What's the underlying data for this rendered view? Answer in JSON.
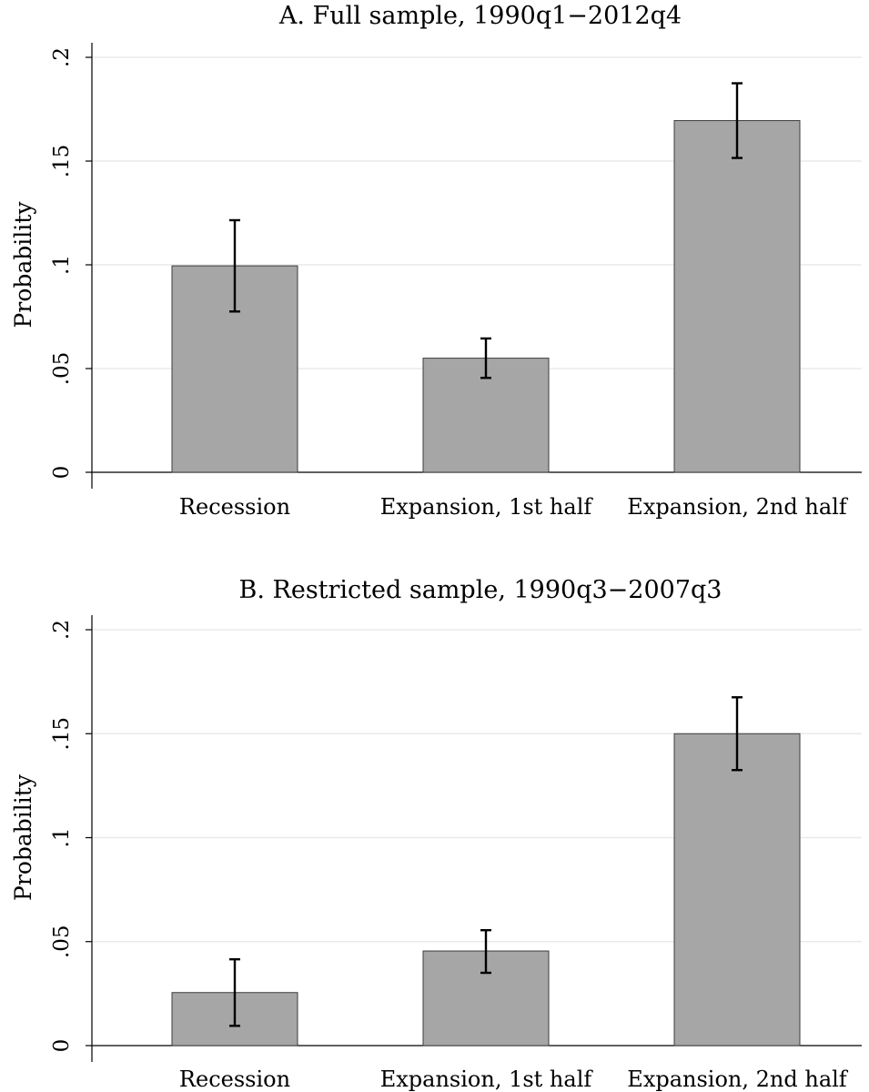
{
  "chart_data": [
    {
      "type": "bar",
      "title": "A. Full sample, 1990q1−2012q4",
      "xlabel": "",
      "ylabel": "Probability",
      "categories": [
        "Recession",
        "Expansion, 1st half",
        "Expansion, 2nd half"
      ],
      "values": [
        0.0995,
        0.055,
        0.1695
      ],
      "error_low": [
        0.0775,
        0.0455,
        0.1515
      ],
      "error_high": [
        0.1215,
        0.0645,
        0.1875
      ],
      "yticks": [
        0,
        0.05,
        0.1,
        0.15,
        0.2
      ],
      "ytick_labels": [
        "0",
        ".05",
        ".1",
        ".15",
        ".2"
      ],
      "ylim": [
        0,
        0.2
      ],
      "grid": true,
      "bar_color": "#a6a6a6"
    },
    {
      "type": "bar",
      "title": "B. Restricted sample, 1990q3−2007q3",
      "xlabel": "",
      "ylabel": "Probability",
      "categories": [
        "Recession",
        "Expansion, 1st half",
        "Expansion, 2nd half"
      ],
      "values": [
        0.0255,
        0.0455,
        0.15
      ],
      "error_low": [
        0.0095,
        0.035,
        0.1325
      ],
      "error_high": [
        0.0415,
        0.0555,
        0.1675
      ],
      "yticks": [
        0,
        0.05,
        0.1,
        0.15,
        0.2
      ],
      "ytick_labels": [
        "0",
        ".05",
        ".1",
        ".15",
        ".2"
      ],
      "ylim": [
        0,
        0.2
      ],
      "grid": true,
      "bar_color": "#a6a6a6"
    }
  ]
}
